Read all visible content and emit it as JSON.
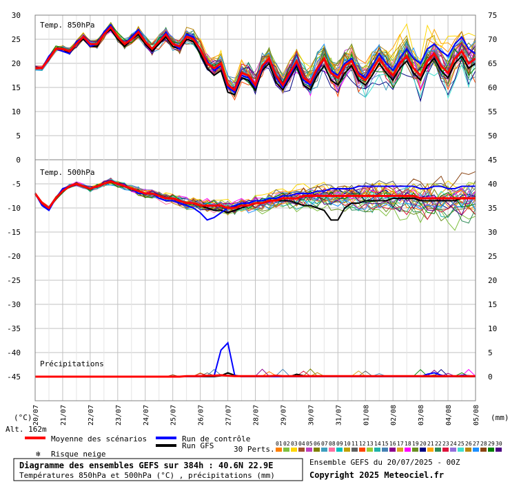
{
  "chart_data": {
    "type": "line",
    "title": "Diagramme des ensembles GEFS sur 384h : 40.6N 22.9E",
    "subtitle": "Températures 850hPa et 500hPa (°C) , précipitations (mm)",
    "run_label": "Ensemble GEFS du 20/07/2025 - 00Z",
    "copyright": "Copyright 2025 Meteociel.fr",
    "altitude_label": "Alt. 162m",
    "left_unit_label": "(°C)",
    "right_unit_label": "(mm)",
    "left_ticks": [
      30,
      25,
      20,
      15,
      10,
      5,
      0,
      -5,
      -10,
      -15,
      -20,
      -25,
      -30,
      -35,
      -40,
      -45
    ],
    "right_ticks": [
      75,
      70,
      65,
      60,
      55,
      50,
      45,
      40,
      35,
      30,
      25,
      20,
      15,
      10,
      5,
      0
    ],
    "x_tick_labels": [
      "20/07",
      "21/07",
      "22/07",
      "23/07",
      "24/07",
      "25/07",
      "26/07",
      "27/07",
      "28/07",
      "29/07",
      "30/07",
      "31/07",
      "01/08",
      "02/08",
      "03/08",
      "04/08",
      "05/08"
    ],
    "xlim_hours": [
      0,
      384
    ],
    "ylim_left": [
      -50,
      32
    ],
    "grid": true,
    "panels": [
      {
        "label": "Temp. 850hPa",
        "unit": "°C",
        "x_hours": [
          0,
          6,
          12,
          18,
          24,
          30,
          36,
          42,
          48,
          54,
          60,
          66,
          72,
          78,
          84,
          90,
          96,
          102,
          108,
          114,
          120,
          126,
          132,
          138,
          144,
          150,
          156,
          162,
          168,
          174,
          180,
          186,
          192,
          198,
          204,
          210,
          216,
          222,
          228,
          234,
          240,
          246,
          252,
          258,
          264,
          270,
          276,
          282,
          288,
          294,
          300,
          306,
          312,
          318,
          324,
          330,
          336,
          342,
          348,
          354,
          360,
          366,
          372,
          378,
          384
        ],
        "mean": [
          19,
          19,
          21,
          23,
          23,
          22.5,
          24,
          25.5,
          24,
          24,
          26,
          27.5,
          25.5,
          24,
          25,
          26.5,
          24.5,
          23,
          24.5,
          26,
          24,
          23.5,
          25.5,
          25,
          23,
          20,
          19,
          20,
          15.5,
          14.5,
          18,
          17.5,
          15.5,
          19.5,
          21,
          17.5,
          15.5,
          18,
          20.5,
          17,
          16,
          19,
          21,
          18,
          17,
          19.5,
          20.5,
          17.5,
          16.5,
          18.5,
          21,
          19,
          17.5,
          20,
          21.5,
          19,
          17.5,
          20.5,
          22,
          19.5,
          18,
          21,
          22.5,
          20,
          21
        ],
        "control": [
          19,
          19,
          21.5,
          23,
          22.5,
          22,
          24.5,
          25.5,
          23.5,
          24,
          26.5,
          28,
          25.5,
          24,
          25.5,
          27,
          24.5,
          23,
          24.5,
          26.5,
          24,
          23,
          26,
          25.5,
          23,
          20.5,
          18.5,
          19.5,
          15,
          14,
          17.5,
          17,
          15,
          19,
          21,
          17,
          15,
          17.5,
          20,
          16.5,
          15.5,
          18.5,
          21,
          18.5,
          17.5,
          20,
          21,
          18,
          17,
          19.5,
          22,
          20,
          18.5,
          21,
          23,
          21,
          20,
          23,
          24,
          22.5,
          21.5,
          24,
          25.5,
          23,
          22
        ],
        "gfs": [
          19,
          19,
          21,
          23,
          23,
          22,
          24,
          25,
          23.5,
          23.5,
          26,
          27,
          25,
          23.5,
          25,
          26,
          24,
          22.5,
          24,
          25.5,
          23.5,
          23,
          25,
          24.5,
          22,
          19,
          17.5,
          18.5,
          14,
          13.5,
          17,
          16.5,
          14.5,
          18.5,
          20,
          16,
          14.5,
          17,
          19.5,
          15.5,
          14.5,
          17.5,
          19.5,
          16.5,
          15.5,
          18,
          19.5,
          16.5,
          15.5,
          17.5,
          20,
          18,
          16.5,
          19,
          20.5,
          18,
          16.5,
          19.5,
          21,
          18.5,
          17,
          20,
          21.5,
          19,
          20
        ]
      },
      {
        "label": "Temp. 500hPa",
        "unit": "°C",
        "x_hours": [
          0,
          6,
          12,
          18,
          24,
          30,
          36,
          42,
          48,
          54,
          60,
          66,
          72,
          78,
          84,
          90,
          96,
          102,
          108,
          114,
          120,
          126,
          132,
          138,
          144,
          150,
          156,
          162,
          168,
          174,
          180,
          186,
          192,
          198,
          204,
          210,
          216,
          222,
          228,
          234,
          240,
          246,
          252,
          258,
          264,
          270,
          276,
          282,
          288,
          294,
          300,
          306,
          312,
          318,
          324,
          330,
          336,
          342,
          348,
          354,
          360,
          366,
          372,
          378,
          384
        ],
        "mean": [
          -7,
          -9,
          -10,
          -8,
          -6.5,
          -5.5,
          -5,
          -5.5,
          -6,
          -5.5,
          -5,
          -4.5,
          -5,
          -5.5,
          -6,
          -6.5,
          -7,
          -7,
          -7.5,
          -8,
          -8,
          -8.5,
          -9,
          -9,
          -9.5,
          -9.5,
          -9.5,
          -9.5,
          -10,
          -10,
          -9.5,
          -9.5,
          -9,
          -9,
          -8.5,
          -8.5,
          -8,
          -8,
          -8,
          -7.5,
          -7.5,
          -7.5,
          -7.5,
          -7.5,
          -7.5,
          -7.5,
          -7.5,
          -7.5,
          -7.5,
          -7.5,
          -7.5,
          -7.5,
          -7.5,
          -7.5,
          -7.5,
          -7.5,
          -8,
          -8,
          -8,
          -8,
          -8,
          -8,
          -8,
          -8,
          -8
        ],
        "control": [
          -7,
          -9.5,
          -10.5,
          -8,
          -6,
          -5.5,
          -5,
          -5.5,
          -6,
          -5.5,
          -5,
          -4.5,
          -5,
          -5.5,
          -6,
          -7,
          -7,
          -7,
          -8,
          -8.5,
          -8.5,
          -9,
          -9.5,
          -10,
          -11,
          -12.5,
          -12,
          -11,
          -10,
          -9.5,
          -9,
          -9,
          -8.5,
          -8.5,
          -8,
          -8,
          -7.5,
          -7.5,
          -7,
          -7,
          -7,
          -6.5,
          -6.5,
          -6,
          -6,
          -6,
          -6,
          -5.5,
          -5.5,
          -5.5,
          -5.5,
          -5.5,
          -5.5,
          -5.5,
          -5.5,
          -5.5,
          -6,
          -6,
          -5.5,
          -5.5,
          -6,
          -6,
          -5.5,
          -5.5,
          -5.5
        ],
        "gfs": [
          -7,
          -9,
          -10,
          -8,
          -6.5,
          -5.5,
          -5,
          -5.5,
          -6,
          -5.5,
          -5,
          -4.5,
          -5,
          -5.5,
          -6,
          -6.5,
          -7,
          -7,
          -7.5,
          -8,
          -8,
          -8.5,
          -9,
          -9,
          -9.5,
          -10,
          -10.5,
          -10.5,
          -11,
          -10.5,
          -10,
          -9.5,
          -9,
          -9,
          -8.5,
          -8.5,
          -8.5,
          -8.5,
          -9,
          -9.5,
          -9.5,
          -10,
          -10.5,
          -12.5,
          -12.5,
          -10,
          -9,
          -9,
          -8.5,
          -8.5,
          -8.5,
          -8.5,
          -8,
          -8,
          -8,
          -8,
          -8.5,
          -8.5,
          -8.5,
          -8.5,
          -8.5,
          -8.5,
          -8,
          -8,
          -8
        ]
      },
      {
        "label": "Précipitations",
        "unit": "mm",
        "x_hours": [
          0,
          6,
          12,
          18,
          24,
          30,
          36,
          42,
          48,
          54,
          60,
          66,
          72,
          78,
          84,
          90,
          96,
          102,
          108,
          114,
          120,
          126,
          132,
          138,
          144,
          150,
          156,
          162,
          168,
          174,
          180,
          186,
          192,
          198,
          204,
          210,
          216,
          222,
          228,
          234,
          240,
          246,
          252,
          258,
          264,
          270,
          276,
          282,
          288,
          294,
          300,
          306,
          312,
          318,
          324,
          330,
          336,
          342,
          348,
          354,
          360,
          366,
          372,
          378,
          384
        ],
        "mean": [
          0,
          0,
          0,
          0,
          0,
          0,
          0,
          0,
          0,
          0,
          0,
          0,
          0,
          0,
          0,
          0,
          0,
          0,
          0,
          0,
          0,
          0,
          0.1,
          0.1,
          0.1,
          0.2,
          0.2,
          0.3,
          0.2,
          0.1,
          0.1,
          0.1,
          0.1,
          0.1,
          0.1,
          0.2,
          0.1,
          0.1,
          0.1,
          0.1,
          0.1,
          0.1,
          0.1,
          0.1,
          0.1,
          0.1,
          0.1,
          0.1,
          0.1,
          0.1,
          0.1,
          0.1,
          0.1,
          0.1,
          0.1,
          0.1,
          0.1,
          0.1,
          0.1,
          0.1,
          0.1,
          0.1,
          0.1,
          0.1,
          0.1
        ],
        "control": [
          0,
          0,
          0,
          0,
          0,
          0,
          0,
          0,
          0,
          0,
          0,
          0,
          0,
          0,
          0,
          0,
          0,
          0,
          0,
          0,
          0,
          0,
          0,
          0,
          0,
          0.1,
          0.1,
          5.5,
          7,
          0.3,
          0,
          0,
          0,
          0,
          0,
          0,
          0,
          0,
          0,
          0,
          0,
          0,
          0,
          0,
          0,
          0,
          0,
          0,
          0,
          0,
          0,
          0,
          0,
          0,
          0,
          0,
          0,
          0.5,
          0.8,
          0.3,
          0,
          0,
          0.3,
          0.2,
          0
        ],
        "gfs": [
          0,
          0,
          0,
          0,
          0,
          0,
          0,
          0,
          0,
          0,
          0,
          0,
          0,
          0,
          0,
          0,
          0,
          0,
          0,
          0,
          0,
          0,
          0,
          0,
          0,
          0,
          0,
          0.2,
          0.8,
          0.3,
          0,
          0,
          0,
          0,
          0,
          0,
          0,
          0,
          0.5,
          0.2,
          0,
          0,
          0,
          0,
          0,
          0,
          0,
          0,
          0,
          0,
          0,
          0,
          0,
          0,
          0,
          0,
          0,
          0,
          0,
          0,
          0,
          0,
          0,
          0,
          0
        ]
      }
    ],
    "legend": {
      "mean_label": "Moyenne des scénarios",
      "control_label": "Run de contrôle",
      "gfs_label": "Run GFS",
      "snow_label": "Risque neige",
      "perts_label": "30 Perts.",
      "pert_ids": [
        "01",
        "02",
        "03",
        "04",
        "05",
        "06",
        "07",
        "08",
        "09",
        "10",
        "11",
        "12",
        "13",
        "14",
        "15",
        "16",
        "17",
        "18",
        "19",
        "20",
        "21",
        "22",
        "23",
        "24",
        "25",
        "26",
        "27",
        "28",
        "29",
        "30"
      ]
    },
    "colors": {
      "mean": "#ff0000",
      "control": "#0000ff",
      "gfs": "#000000",
      "grid": "#c0c0c0",
      "snow": "#3399ff",
      "perturbations": [
        "#ff7f00",
        "#7fbf3f",
        "#ffd700",
        "#a0522d",
        "#bf3fbf",
        "#808000",
        "#3f9fbf",
        "#ff6fa0",
        "#00bfbf",
        "#c0a000",
        "#606060",
        "#ff4500",
        "#9acd32",
        "#20b2aa",
        "#4682b4",
        "#8b008b",
        "#daa520",
        "#ff00ff",
        "#6b8e23",
        "#000080",
        "#ffa500",
        "#2e8b57",
        "#dc143c",
        "#9370db",
        "#40e0d0",
        "#b8860b",
        "#1e90ff",
        "#8b4513",
        "#008000",
        "#4b0082"
      ]
    }
  }
}
